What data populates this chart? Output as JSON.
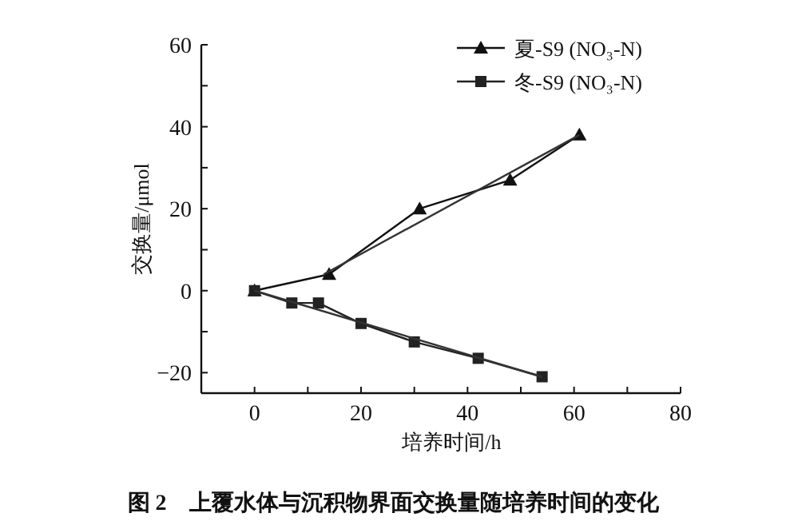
{
  "chart_data": {
    "type": "line",
    "xlabel": "培养时间/h",
    "ylabel": "交换量/μmol",
    "annotations": [
      "图 2　上覆水体与沉积物界面交换量随培养时间的变化"
    ],
    "xlim": [
      -10,
      80
    ],
    "ylim": [
      -25,
      60
    ],
    "xticks": [
      0,
      {
        "value": 10,
        "label": null
      },
      20,
      {
        "value": 30,
        "label": null
      },
      40,
      {
        "value": 50,
        "label": null
      },
      60,
      {
        "value": 70,
        "label": null
      },
      80
    ],
    "yticks": [
      -20,
      {
        "value": -10,
        "label": null
      },
      0,
      {
        "value": 10,
        "label": null
      },
      20,
      {
        "value": 30,
        "label": null
      },
      40,
      {
        "value": 50,
        "label": null
      },
      60
    ],
    "grid": false,
    "legend": "top right",
    "line_style": "solid",
    "series": [
      {
        "name": "夏-S9 (NO₃-N)",
        "color": "#111111",
        "marker": "triangle",
        "x": [
          0,
          14,
          31,
          48,
          61
        ],
        "values": [
          0,
          4,
          20,
          27,
          38
        ]
      },
      {
        "name": "冬-S9 (NO₃-N)",
        "color": "#222222",
        "marker": "square",
        "x": [
          0,
          7,
          12,
          20,
          30,
          42,
          54
        ],
        "values": [
          0,
          -3,
          -3,
          -8,
          -12.5,
          -16.5,
          -21
        ]
      },
      {
        "color": "#333333",
        "marker": "none",
        "x": [
          13,
          61
        ],
        "values": [
          4,
          38
        ]
      },
      {
        "color": "#333333",
        "marker": "none",
        "x": [
          0,
          54
        ],
        "values": [
          0,
          -21
        ]
      }
    ]
  }
}
